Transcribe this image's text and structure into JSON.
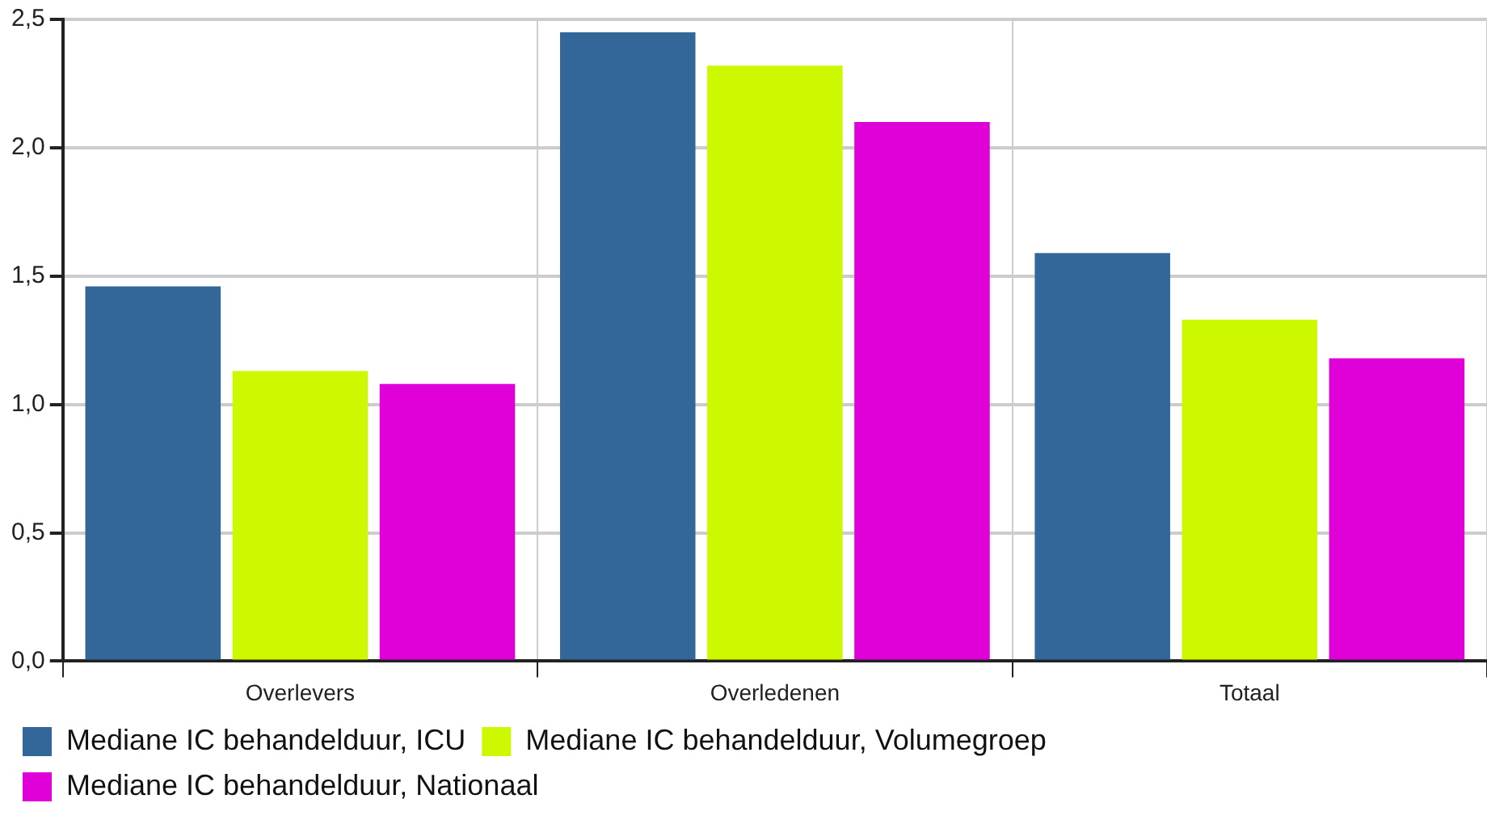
{
  "chart_data": {
    "type": "bar",
    "categories": [
      "Overlevers",
      "Overledenen",
      "Totaal"
    ],
    "series": [
      {
        "name": "Mediane IC behandelduur, ICU",
        "color": "#336699",
        "values": [
          1.46,
          2.45,
          1.59
        ]
      },
      {
        "name": "Mediane IC behandelduur, Volumegroep",
        "color": "#ccf900",
        "values": [
          1.13,
          2.32,
          1.33
        ]
      },
      {
        "name": "Mediane IC behandelduur, Nationaal",
        "color": "#e000d8",
        "values": [
          1.08,
          2.1,
          1.18
        ]
      }
    ],
    "ylim": [
      0,
      2.5
    ],
    "yticks": [
      {
        "value": 0,
        "label": "0,0"
      },
      {
        "value": 0.5,
        "label": "0,5"
      },
      {
        "value": 1,
        "label": "1,0"
      },
      {
        "value": 1.5,
        "label": "1,5"
      },
      {
        "value": 2,
        "label": "2,0"
      },
      {
        "value": 2.5,
        "label": "2,5"
      }
    ],
    "grid": true,
    "legend": "bottom"
  }
}
